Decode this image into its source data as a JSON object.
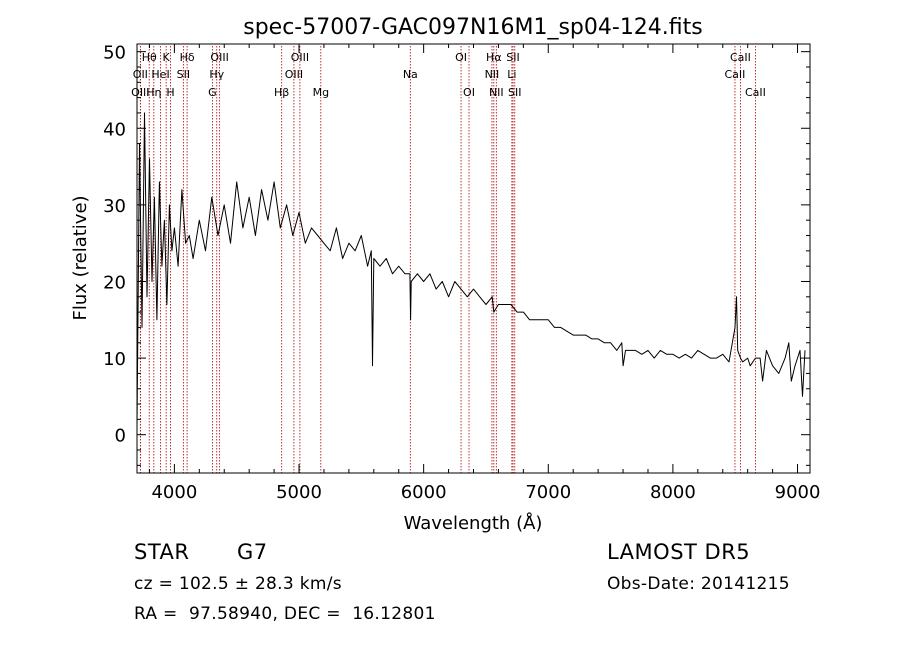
{
  "chart_data": {
    "type": "line",
    "title": "spec-57007-GAC097N16M1_sp04-124.fits",
    "xlabel": "Wavelength (Å)",
    "ylabel": "Flux (relative)",
    "xlim": [
      3700,
      9100
    ],
    "ylim": [
      -5,
      51
    ],
    "xticks": [
      4000,
      5000,
      6000,
      7000,
      8000,
      9000
    ],
    "xtick_labels": [
      "4000",
      "5000",
      "6000",
      "7000",
      "8000",
      "9000"
    ],
    "yticks": [
      0,
      10,
      20,
      30,
      40,
      50
    ],
    "ytick_labels": [
      "0",
      "10",
      "20",
      "30",
      "40",
      "50"
    ],
    "grid": false,
    "series": [
      {
        "color": "#000000",
        "x": [
          3700,
          3720,
          3740,
          3760,
          3780,
          3800,
          3820,
          3840,
          3860,
          3880,
          3900,
          3920,
          3940,
          3960,
          3980,
          4000,
          4030,
          4060,
          4090,
          4120,
          4150,
          4200,
          4250,
          4300,
          4350,
          4400,
          4450,
          4500,
          4550,
          4600,
          4650,
          4700,
          4750,
          4800,
          4850,
          4900,
          4950,
          5000,
          5050,
          5100,
          5150,
          5200,
          5250,
          5300,
          5350,
          5400,
          5450,
          5500,
          5550,
          5580,
          5590,
          5600,
          5650,
          5700,
          5750,
          5800,
          5850,
          5890,
          5895,
          5900,
          5950,
          6000,
          6050,
          6100,
          6150,
          6200,
          6250,
          6300,
          6350,
          6400,
          6450,
          6500,
          6550,
          6563,
          6600,
          6650,
          6700,
          6750,
          6800,
          6850,
          6900,
          6950,
          7000,
          7050,
          7100,
          7150,
          7200,
          7250,
          7300,
          7350,
          7400,
          7450,
          7500,
          7550,
          7590,
          7600,
          7620,
          7650,
          7700,
          7750,
          7800,
          7850,
          7900,
          7950,
          8000,
          8050,
          8100,
          8150,
          8200,
          8250,
          8300,
          8350,
          8400,
          8450,
          8498,
          8510,
          8520,
          8542,
          8560,
          8600,
          8620,
          8662,
          8700,
          8720,
          8750,
          8800,
          8850,
          8900,
          8930,
          8950,
          8980,
          9000,
          9020,
          9040,
          9060
        ],
        "y": [
          1,
          38,
          14,
          42,
          18,
          36,
          20,
          31,
          15,
          33,
          22,
          28,
          17,
          30,
          24,
          27,
          22,
          32,
          25,
          26,
          23,
          28,
          24,
          31,
          26,
          30,
          25,
          33,
          27,
          31,
          26,
          32,
          28,
          33,
          27,
          30,
          26,
          29,
          25,
          27,
          26,
          25,
          24,
          27,
          23,
          25,
          24,
          26,
          22,
          24,
          9,
          23,
          22,
          23,
          21,
          22,
          21,
          21,
          15,
          20,
          21,
          20,
          21,
          19,
          20,
          18,
          20,
          19,
          18,
          19,
          18,
          17,
          18,
          16,
          17,
          17,
          17,
          16,
          16,
          15,
          15,
          15,
          15,
          14,
          14,
          13.5,
          13,
          13,
          13,
          12.5,
          12.5,
          12,
          12,
          11,
          12,
          9,
          11,
          11,
          11,
          10.5,
          11,
          10,
          11,
          10.5,
          10.5,
          10,
          10.5,
          10,
          11,
          10.5,
          10,
          10,
          10.5,
          9.5,
          14,
          18,
          11,
          10,
          9.5,
          10,
          9,
          10,
          10,
          7,
          11,
          9,
          8,
          10,
          12,
          7,
          9,
          10,
          11,
          5,
          11
        ]
      }
    ],
    "line_labels": [
      {
        "label": "Hθ",
        "row": 1,
        "x": 3798
      },
      {
        "label": "K",
        "row": 1,
        "x": 3934
      },
      {
        "label": "Hδ",
        "row": 1,
        "x": 4102
      },
      {
        "label": "OIII",
        "row": 1,
        "x": 4363
      },
      {
        "label": "OIII",
        "row": 1,
        "x": 5007
      },
      {
        "label": "OI",
        "row": 1,
        "x": 6300
      },
      {
        "label": "Hα",
        "row": 1,
        "x": 6563
      },
      {
        "label": "SII",
        "row": 1,
        "x": 6717
      },
      {
        "label": "CaII",
        "row": 1,
        "x": 8542
      },
      {
        "label": "OII",
        "row": 2,
        "x": 3727
      },
      {
        "label": "HeI",
        "row": 2,
        "x": 3889
      },
      {
        "label": "SII",
        "row": 2,
        "x": 4072
      },
      {
        "label": "Hγ",
        "row": 2,
        "x": 4340
      },
      {
        "label": "OIII",
        "row": 2,
        "x": 4959
      },
      {
        "label": "Na",
        "row": 2,
        "x": 5893
      },
      {
        "label": "NII",
        "row": 2,
        "x": 6548
      },
      {
        "label": "Li",
        "row": 2,
        "x": 6708
      },
      {
        "label": "CaII",
        "row": 2,
        "x": 8498
      },
      {
        "label": "OIII",
        "row": 3,
        "x": 3727
      },
      {
        "label": "Hη",
        "row": 3,
        "x": 3835
      },
      {
        "label": "H",
        "row": 3,
        "x": 3969
      },
      {
        "label": "G",
        "row": 3,
        "x": 4305
      },
      {
        "label": "Hβ",
        "row": 3,
        "x": 4861
      },
      {
        "label": "Mg",
        "row": 3,
        "x": 5175
      },
      {
        "label": "OI",
        "row": 3,
        "x": 6364
      },
      {
        "label": "NII",
        "row": 3,
        "x": 6583
      },
      {
        "label": "SII",
        "row": 3,
        "x": 6731
      },
      {
        "label": "CaII",
        "row": 3,
        "x": 8662
      }
    ],
    "line_color": "#b00000"
  },
  "footer": {
    "object_class": "STAR",
    "subclass": "G7",
    "survey": "LAMOST DR5",
    "cz": "cz = 102.5 ± 28.3 km/s",
    "obs_date": "Obs-Date: 20141215",
    "coords": "RA =  97.58940, DEC =  16.12801"
  }
}
